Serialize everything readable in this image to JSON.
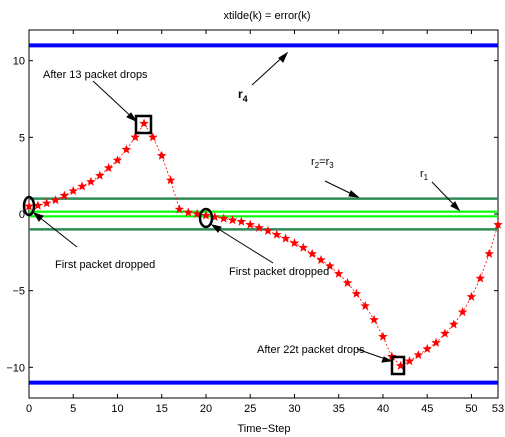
{
  "chart_data": {
    "type": "line",
    "title": "xtilde(k) = error(k)",
    "xlabel": "Time−Step",
    "ylabel": "",
    "xlim": [
      0,
      53
    ],
    "ylim": [
      -12,
      12
    ],
    "xticks": [
      0,
      5,
      10,
      15,
      20,
      25,
      30,
      35,
      40,
      45,
      50,
      53
    ],
    "yticks": [
      10,
      5,
      0,
      -5,
      -10
    ],
    "ytick_labels": [
      "10",
      "5",
      "0",
      "−5",
      "−10"
    ],
    "grid": false,
    "legend": "none",
    "bounds": [
      {
        "label": "r",
        "sub": "4",
        "upper": 11,
        "lower": -11,
        "color": "#0000ff"
      },
      {
        "label": "r",
        "sub": "1",
        "upper": 1,
        "lower": -1,
        "color": "#2e8b57"
      },
      {
        "label": "r",
        "sub": "2",
        "label2": "r",
        "sub2": "3",
        "upper": 0.15,
        "lower": -0.15,
        "color": "#00ff00"
      }
    ],
    "series": [
      {
        "color": "#ff0000",
        "marker": "star",
        "x": [
          0,
          1,
          2,
          3,
          4,
          5,
          6,
          7,
          8,
          9,
          10,
          11,
          12,
          13,
          14,
          15,
          16,
          17,
          18,
          19,
          20,
          21,
          22,
          23,
          24,
          25,
          26,
          27,
          28,
          29,
          30,
          31,
          32,
          33,
          34,
          35,
          36,
          37,
          38,
          39,
          40,
          41,
          42,
          43,
          44,
          45,
          46,
          47,
          48,
          49,
          50,
          51,
          52,
          53
        ],
        "y": [
          0.5,
          0.55,
          0.7,
          0.9,
          1.2,
          1.5,
          1.8,
          2.1,
          2.5,
          3.0,
          3.5,
          4.2,
          5.0,
          5.9,
          5.0,
          3.8,
          2.2,
          0.3,
          0.1,
          0.0,
          -0.1,
          -0.2,
          -0.3,
          -0.4,
          -0.5,
          -0.7,
          -0.9,
          -1.1,
          -1.35,
          -1.6,
          -1.9,
          -2.2,
          -2.6,
          -3.0,
          -3.4,
          -3.9,
          -4.5,
          -5.2,
          -6.0,
          -6.9,
          -8.0,
          -9.3,
          -9.9,
          -9.6,
          -9.2,
          -8.8,
          -8.4,
          -7.8,
          -7.2,
          -6.4,
          -5.4,
          -4.2,
          -2.6,
          -0.7
        ]
      }
    ],
    "annotations": [
      {
        "text": "After 13 packet drops",
        "x": 13,
        "y": 5.9,
        "box": "square"
      },
      {
        "text": "First packet dropped",
        "x": 0,
        "y": 0.5,
        "box": "ellipse"
      },
      {
        "text": "First packet dropped",
        "x": 20,
        "y": -0.1,
        "box": "ellipse"
      },
      {
        "text": "After 22t packet drops",
        "x": 42,
        "y": -9.9,
        "box": "square"
      }
    ]
  }
}
